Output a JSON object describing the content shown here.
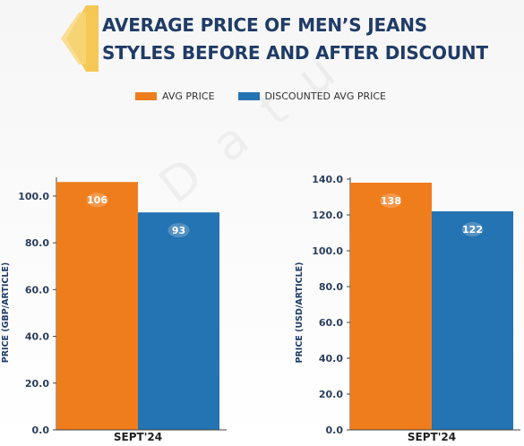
{
  "title_lines": [
    "AVERAGE PRICE OF MEN’S JEANS",
    "STYLES BEFORE AND AFTER DISCOUNT"
  ],
  "legend": [
    {
      "label": "AVG PRICE",
      "color": "#f07d1c"
    },
    {
      "label": "DISCOUNTED AVG PRICE",
      "color": "#2473b2"
    }
  ],
  "colors": {
    "accent_logo": "#f5c242",
    "title": "#1f3b66"
  },
  "chart_data": [
    {
      "type": "bar",
      "categories": [
        "SEPT'24"
      ],
      "series": [
        {
          "name": "AVG PRICE",
          "values": [
            106
          ]
        },
        {
          "name": "DISCOUNTED AVG PRICE",
          "values": [
            93
          ]
        }
      ],
      "ylabel": "PRICE (GBP/ARTICLE)",
      "ylim": [
        0,
        108
      ],
      "yticks": [
        "0.0",
        "20.0",
        "40.0",
        "60.0",
        "80.0",
        "100.0"
      ],
      "grid": false
    },
    {
      "type": "bar",
      "categories": [
        "SEPT'24"
      ],
      "series": [
        {
          "name": "AVG PRICE",
          "values": [
            138
          ]
        },
        {
          "name": "DISCOUNTED AVG PRICE",
          "values": [
            122
          ]
        }
      ],
      "ylabel": "PRICE (USD/ARTICLE)",
      "ylim": [
        0,
        141
      ],
      "yticks": [
        "0.0",
        "20.0",
        "40.0",
        "60.0",
        "80.0",
        "100.0",
        "120.0",
        "140.0"
      ],
      "grid": false
    }
  ]
}
